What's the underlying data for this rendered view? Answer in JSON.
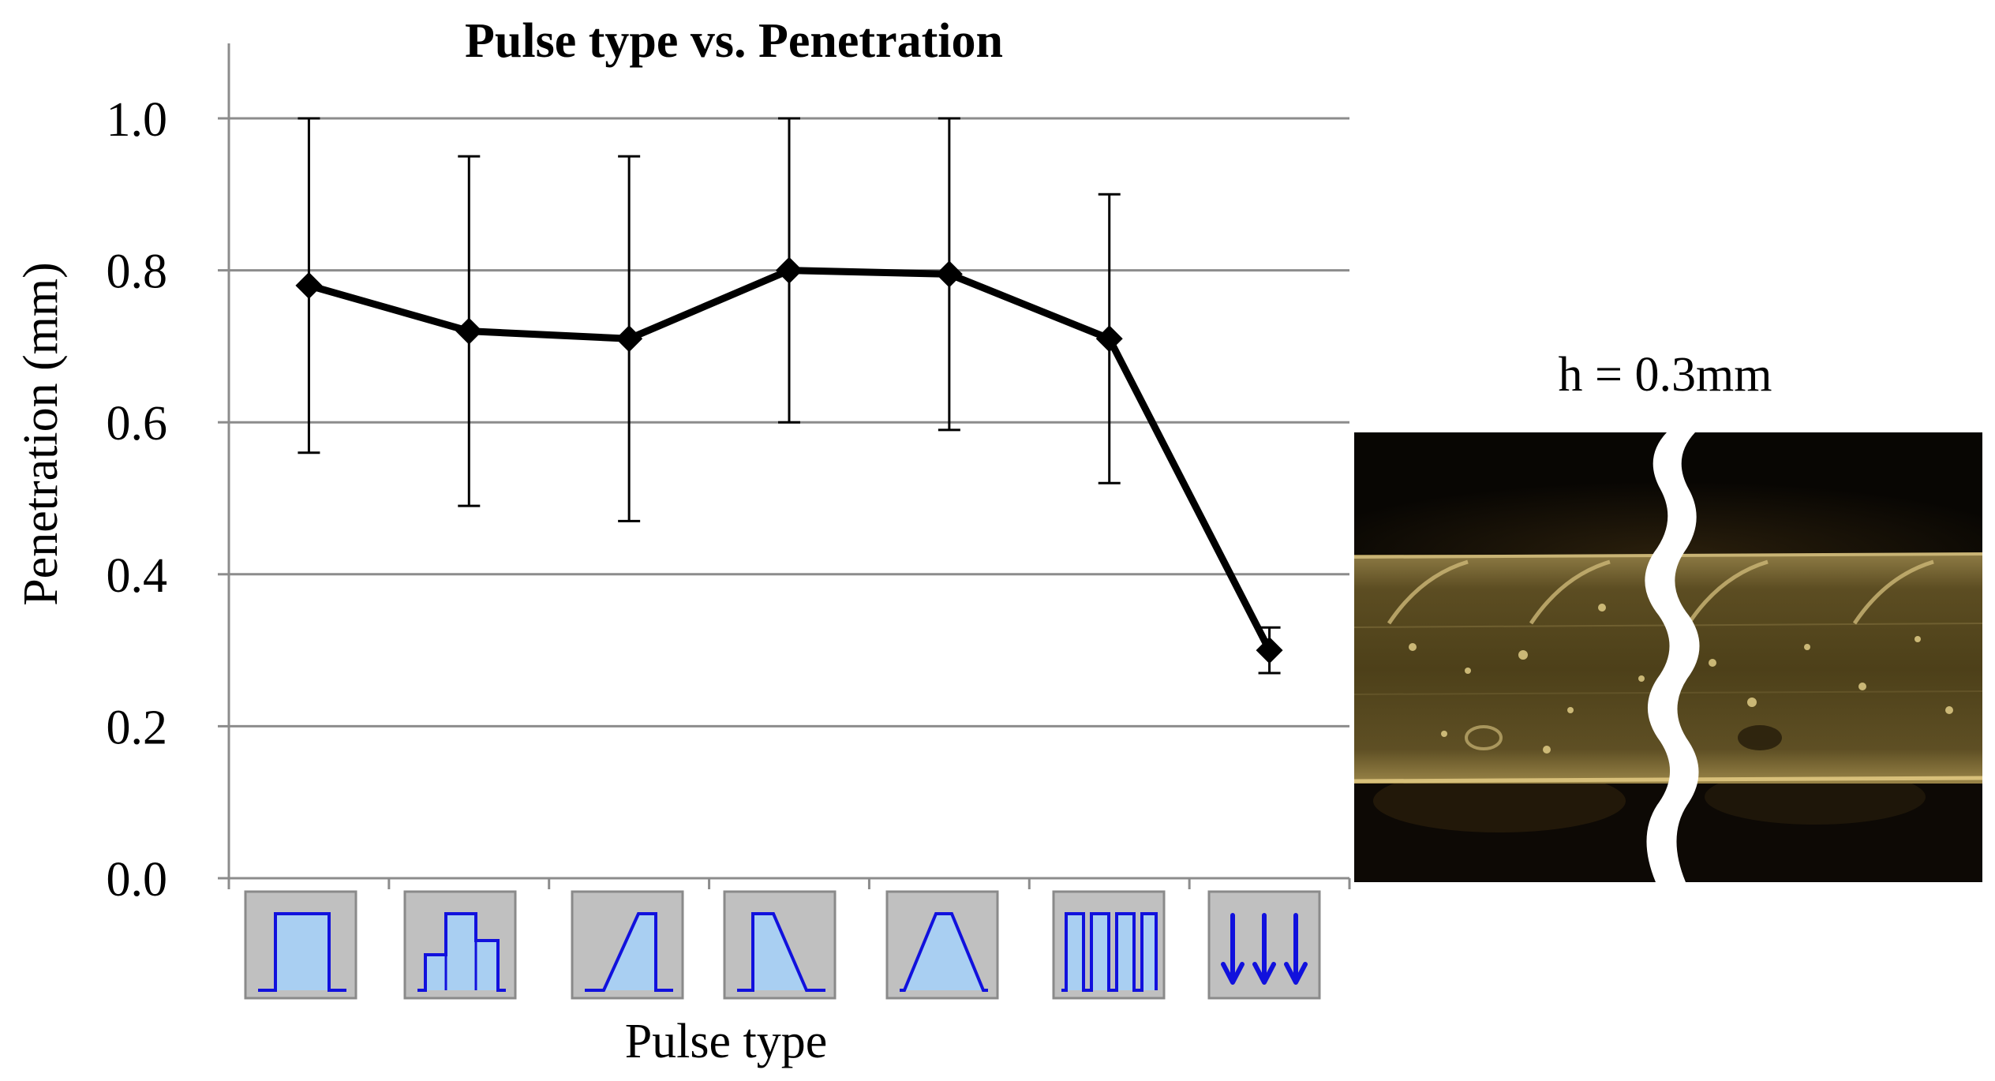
{
  "chart_data": {
    "type": "line",
    "title": "Pulse type vs. Penetration",
    "xlabel": "Pulse type",
    "ylabel": "Penetration (mm)",
    "ylim": [
      0.0,
      1.1
    ],
    "yticks": [
      "0.0",
      "0.2",
      "0.4",
      "0.6",
      "0.8",
      "1.0"
    ],
    "grid": "horizontal",
    "legend": "none",
    "categories": [
      "rectangular",
      "stepped",
      "ramp-up",
      "ramp-down",
      "trapezoidal",
      "pulsed",
      "arrows"
    ],
    "series": [
      {
        "values": [
          0.78,
          0.72,
          0.71,
          0.8,
          0.795,
          0.71,
          0.3
        ],
        "err_low": [
          0.56,
          0.49,
          0.47,
          0.6,
          0.59,
          0.52,
          0.27
        ],
        "err_high": [
          1.0,
          0.95,
          0.95,
          1.0,
          1.0,
          0.9,
          0.33
        ],
        "color": "#000000",
        "marker": "diamond"
      }
    ]
  },
  "pulse_icon_names": [
    "rectangular-pulse-icon",
    "stepped-pulse-icon",
    "ramp-up-pulse-icon",
    "ramp-down-pulse-icon",
    "trapezoidal-pulse-icon",
    "pulsed-train-icon",
    "downward-arrows-icon"
  ],
  "inset": {
    "caption": "h = 0.3mm"
  },
  "colors": {
    "gridline": "#8c8c8c",
    "icon_bg": "#c0c0c0",
    "icon_fill": "#a9cff2",
    "icon_stroke": "#1111dd",
    "photo_dark": "#0a0703",
    "photo_band": "#6b5a2c"
  }
}
